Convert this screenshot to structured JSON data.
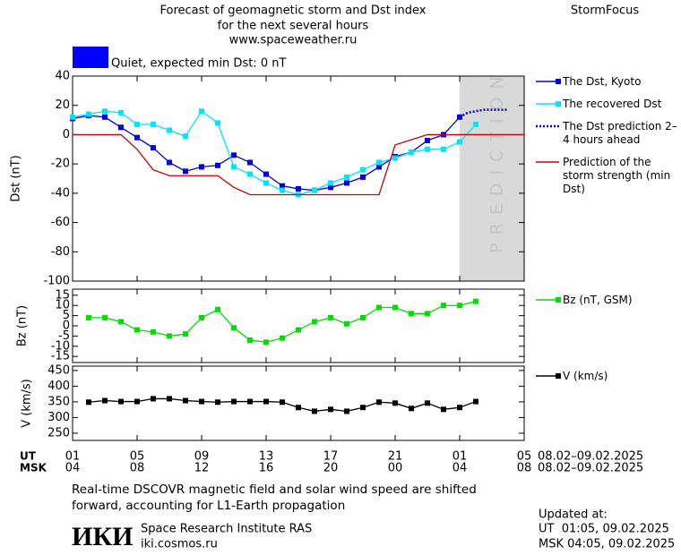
{
  "header": {
    "title_lines": [
      "Forecast of geomagnetic storm and Dst index",
      "for the next several hours",
      "www.spaceweather.ru"
    ],
    "brand": "StormFocus",
    "status": "Quiet, expected min Dst: 0 nT",
    "status_color": "#0000ff"
  },
  "chart_data": [
    {
      "type": "line",
      "ylabel": "Dst (nT)",
      "xlim": [
        0,
        28
      ],
      "ylim": [
        -100,
        40
      ],
      "yticks": [
        40,
        20,
        0,
        -20,
        -40,
        -60,
        -80,
        -100
      ],
      "shade_from": 24,
      "shade_label": "PREDICTION",
      "series": [
        {
          "name": "The Dst, Kyoto",
          "color": "#0000dd",
          "style": "solid",
          "markers": true,
          "x": [
            0,
            1,
            2,
            3,
            4,
            5,
            6,
            7,
            8,
            9,
            10,
            11,
            12,
            13,
            14,
            15,
            16,
            17,
            18,
            19,
            20,
            21,
            22,
            23,
            24
          ],
          "values": [
            11,
            13,
            12,
            5,
            -2,
            -9,
            -19,
            -25,
            -22,
            -21,
            -14,
            -19,
            -27,
            -35,
            -37,
            -38,
            -36,
            -33,
            -29,
            -22,
            -15,
            -12,
            -4,
            0,
            12
          ]
        },
        {
          "name": "The recovered Dst",
          "color": "#00e5ff",
          "style": "solid",
          "markers": true,
          "x": [
            0,
            1,
            2,
            3,
            4,
            5,
            6,
            7,
            8,
            9,
            10,
            11,
            12,
            13,
            14,
            15,
            16,
            17,
            18,
            19,
            20,
            21,
            22,
            23,
            24,
            25
          ],
          "values": [
            12,
            14,
            16,
            15,
            7,
            7,
            3,
            -1,
            16,
            8,
            -22,
            -27,
            -33,
            -38,
            -41,
            -38,
            -33,
            -29,
            -24,
            -19,
            -16,
            -12,
            -10,
            -10,
            -5,
            7
          ]
        },
        {
          "name": "The Dst prediction 2–4 hours ahead",
          "color": "#0000dd",
          "style": "dotted",
          "markers": false,
          "x": [
            24,
            24.5,
            25,
            25.5,
            26,
            26.5,
            27
          ],
          "values": [
            12,
            15,
            16,
            17,
            17,
            17,
            17
          ]
        },
        {
          "name": "Prediction of the storm strength (min Dst)",
          "color": "#cc0000",
          "style": "solid",
          "markers": false,
          "x": [
            0,
            3,
            4,
            5,
            6,
            9,
            10,
            11,
            19,
            20,
            22,
            28
          ],
          "values": [
            0,
            0,
            -10,
            -24,
            -28,
            -28,
            -36,
            -41,
            -41,
            -7,
            0,
            0
          ]
        }
      ]
    },
    {
      "type": "line",
      "ylabel": "Bz (nT)",
      "xlim": [
        0,
        28
      ],
      "ylim": [
        -18,
        18
      ],
      "yticks": [
        15,
        10,
        5,
        0,
        -5,
        -10,
        -15
      ],
      "series": [
        {
          "name": "Bz (nT, GSM)",
          "color": "#00dd00",
          "style": "solid",
          "markers": true,
          "x": [
            1,
            2,
            3,
            4,
            5,
            6,
            7,
            8,
            9,
            10,
            11,
            12,
            13,
            14,
            15,
            16,
            17,
            18,
            19,
            20,
            21,
            22,
            23,
            24,
            25
          ],
          "values": [
            4,
            4,
            2,
            -2,
            -3,
            -5,
            -4,
            4,
            8,
            -1,
            -7,
            -8,
            -6,
            -2,
            2,
            4,
            1,
            4,
            9,
            9,
            6,
            6,
            10,
            10,
            12
          ]
        }
      ]
    },
    {
      "type": "line",
      "ylabel": "V (km/s)",
      "xlim": [
        0,
        28
      ],
      "ylim": [
        227,
        464
      ],
      "yticks": [
        450,
        400,
        350,
        300,
        250
      ],
      "xticks": [
        {
          "value": 0,
          "label": "01"
        },
        {
          "value": 4,
          "label": "05"
        },
        {
          "value": 8,
          "label": "09"
        },
        {
          "value": 12,
          "label": "13"
        },
        {
          "value": 16,
          "label": "17"
        },
        {
          "value": 20,
          "label": "21"
        },
        {
          "value": 24,
          "label": "01"
        },
        {
          "value": 28,
          "label": "05"
        }
      ],
      "xticks_msk": [
        "04",
        "08",
        "12",
        "16",
        "20",
        "00",
        "04",
        "08"
      ],
      "series": [
        {
          "name": "V (km/s)",
          "color": "#000000",
          "style": "solid",
          "markers": true,
          "x": [
            1,
            2,
            3,
            4,
            5,
            6,
            7,
            8,
            9,
            10,
            11,
            12,
            13,
            14,
            15,
            16,
            17,
            18,
            19,
            20,
            21,
            22,
            23,
            24,
            25
          ],
          "values": [
            349,
            354,
            351,
            351,
            360,
            360,
            354,
            351,
            349,
            351,
            351,
            351,
            349,
            332,
            320,
            326,
            320,
            332,
            349,
            346,
            329,
            346,
            326,
            332,
            351
          ]
        }
      ]
    }
  ],
  "axis_rows": {
    "ut": "UT",
    "msk": "MSK",
    "ut_range": "08.02–09.02.2025",
    "msk_range": "08.02–09.02.2025"
  },
  "footer": {
    "note_lines": [
      "Real-time DSCOVR magnetic field and solar wind speed are shifted",
      "forward, accounting for L1-Earth propagation"
    ],
    "logo": "ИКИ",
    "institute": "Space Research Institute RAS",
    "site": "iki.cosmos.ru",
    "updated_label": "Updated at:",
    "updated_ut": "UT  01:05, 09.02.2025",
    "updated_msk": "MSK 04:05, 09.02.2025"
  }
}
